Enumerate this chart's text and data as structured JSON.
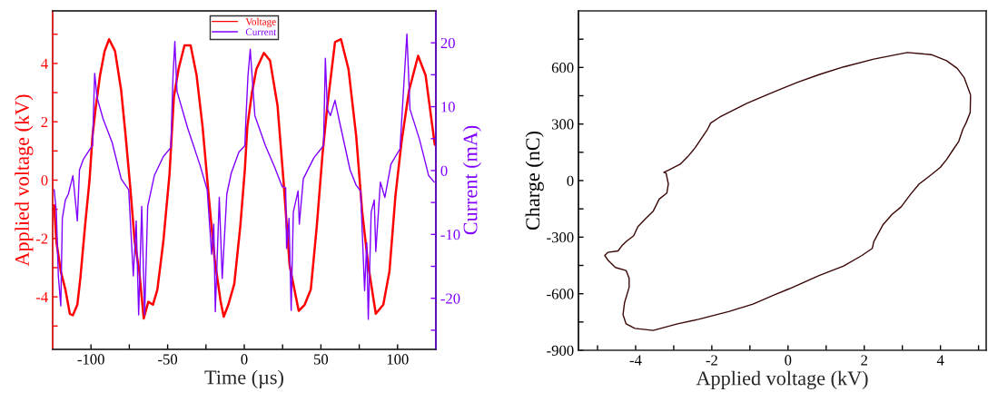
{
  "chart_data": [
    {
      "type": "line",
      "xlabel": "Time (µs)",
      "ylabel": "Applied voltage (kV)",
      "y2label": "Current (mA)",
      "legend": "top",
      "xlim": [
        -125,
        125
      ],
      "xticks": [
        -100,
        {
          "value": -75,
          "label": null
        },
        -50,
        {
          "value": -25,
          "label": null
        },
        0,
        {
          "value": 25,
          "label": null
        },
        50,
        {
          "value": 75,
          "label": null
        },
        100
      ],
      "ylim": [
        -5.8,
        5.8
      ],
      "yticks": [
        {
          "value": -5,
          "label": null
        },
        -4,
        {
          "value": -3,
          "label": null
        },
        -2,
        {
          "value": -1,
          "label": null
        },
        0,
        {
          "value": 1,
          "label": null
        },
        2,
        {
          "value": 3,
          "label": null
        },
        4,
        {
          "value": 5,
          "label": null
        }
      ],
      "y2lim": [
        -28,
        25
      ],
      "y2ticks": [
        {
          "value": -25,
          "label": null
        },
        -20,
        {
          "value": -15,
          "label": null
        },
        -10,
        {
          "value": -5,
          "label": null
        },
        0,
        {
          "value": 5,
          "label": null
        },
        10,
        {
          "value": 15,
          "label": null
        },
        20
      ],
      "series": [
        {
          "name": "Voltage",
          "color": "#ff0000",
          "x": [
            -124,
            -122.6,
            -119.7,
            -116.7,
            -113.8,
            -111.8,
            -108.9,
            -106.9,
            -103.9,
            -101,
            -99,
            -97,
            -94.1,
            -91.1,
            -88.2,
            -84.3,
            -80.3,
            -77.4,
            -74.4,
            -71.5,
            -68.5,
            -65.6,
            -62.6,
            -59.6,
            -56.7,
            -52.8,
            -48.8,
            -45.9,
            -42.9,
            -39,
            -35,
            -31.1,
            -27.2,
            -23.2,
            -19.3,
            -15.4,
            -13.4,
            -10.4,
            -6.5,
            -2.6,
            0.4,
            2,
            4.9,
            7.9,
            12.8,
            16.8,
            21.7,
            25.6,
            29.6,
            35.5,
            39.4,
            43.4,
            47.3,
            50.9,
            54.2,
            59.2,
            63.1,
            68,
            73,
            76.9,
            80.9,
            85.8,
            90.7,
            94.7,
            98.6,
            102.6,
            107.5,
            113.4,
            118.3,
            124.3
          ],
          "values": [
            -0.86,
            -2.1,
            -3.13,
            -3.75,
            -4.58,
            -4.63,
            -4.27,
            -3.34,
            -1.58,
            -0.03,
            1.52,
            2.45,
            3.59,
            4.42,
            4.83,
            4.42,
            3.07,
            1.52,
            -0.24,
            -2.1,
            -3.13,
            -4.74,
            -4.17,
            -4.27,
            -3.75,
            -2.1,
            0.18,
            2.86,
            3.8,
            4.62,
            4.62,
            3.59,
            1.83,
            -0.55,
            -2.72,
            -4.17,
            -4.68,
            -4.27,
            -3.55,
            -1.58,
            0.38,
            1.83,
            2.96,
            3.8,
            4.36,
            4.1,
            2.55,
            -0.03,
            -2.93,
            -4.48,
            -4.27,
            -3.75,
            -1.58,
            0.8,
            2.55,
            4.73,
            4.83,
            3.8,
            1.52,
            -1.07,
            -2.93,
            -4.58,
            -4.27,
            -3.13,
            -0.55,
            1.31,
            3.07,
            4.26,
            3.59,
            1.21
          ]
        },
        {
          "name": "Current",
          "color": "#8000ff",
          "axis": "y2",
          "x": [
            -124,
            -122.6,
            -121.3,
            -119.7,
            -118.7,
            -116.7,
            -114.8,
            -111.8,
            -108.9,
            -107.5,
            -104.9,
            -100,
            -99,
            -97.6,
            -96,
            -92.1,
            -86.2,
            -80.3,
            -75.4,
            -72.4,
            -70.5,
            -68.9,
            -66.9,
            -65,
            -63,
            -58.7,
            -52.8,
            -47.9,
            -46.5,
            -45.3,
            -43.9,
            -37,
            -29.1,
            -24.2,
            -21.3,
            -19.9,
            -18.9,
            -16.3,
            -14.4,
            -11.4,
            -8.5,
            -3.5,
            0.4,
            1,
            2.4,
            3.9,
            6.9,
            13.8,
            19.7,
            24.7,
            27,
            27.6,
            29.2,
            30.6,
            32,
            35.1,
            35.9,
            38.5,
            45.4,
            51.7,
            52.9,
            54.2,
            56.2,
            59.2,
            62.1,
            69,
            73,
            75.9,
            78.5,
            79.9,
            80.9,
            82.8,
            84.8,
            85.8,
            88.8,
            91.7,
            95.7,
            101.6,
            103.6,
            106.1,
            108.1,
            114.4,
            120.3,
            123.9
          ],
          "values": [
            -3.0,
            -6.5,
            -16.5,
            -21.2,
            -7.5,
            -4.6,
            -3.7,
            -0.8,
            -7.9,
            0.1,
            1.8,
            3.6,
            3.9,
            15.2,
            11.4,
            8.1,
            4.4,
            -1.3,
            -3.0,
            -16.5,
            -7.9,
            -22.6,
            -5.6,
            -22.6,
            -5.6,
            -0.8,
            2.2,
            3.6,
            14.7,
            20.2,
            12.4,
            6.7,
            1.0,
            -3.0,
            -13.1,
            -8.4,
            -22.1,
            -4.2,
            -16.9,
            -3.7,
            -0.4,
            2.9,
            3.9,
            7.7,
            14.8,
            19.0,
            8.6,
            3.9,
            0.6,
            -2.5,
            -2.7,
            -12.2,
            -7.5,
            -21.9,
            -6.5,
            -3.2,
            -8.4,
            -1.3,
            2.0,
            3.9,
            17.6,
            9.6,
            8.6,
            11.0,
            7.7,
            0.1,
            -2.3,
            -3.2,
            -18.8,
            -11.3,
            -23.3,
            -6.5,
            -4.6,
            -12.7,
            -1.8,
            -4.2,
            1.0,
            3.4,
            11.5,
            21.4,
            9.6,
            4.8,
            -0.8,
            -1.8
          ]
        }
      ]
    },
    {
      "type": "line",
      "xlabel": "Applied voltage (kV)",
      "ylabel": "Charge (nC)",
      "xlim": [
        -5.5,
        5.2
      ],
      "xticks": [
        {
          "value": -5,
          "label": null
        },
        -4,
        {
          "value": -3,
          "label": null
        },
        -2,
        {
          "value": -1,
          "label": null
        },
        0,
        {
          "value": 1,
          "label": null
        },
        2,
        {
          "value": 3,
          "label": null
        },
        4,
        {
          "value": 5,
          "label": null
        }
      ],
      "ylim": [
        -900,
        900
      ],
      "yticks": [
        -900,
        {
          "value": -750,
          "label": null
        },
        -600,
        {
          "value": -450,
          "label": null
        },
        -300,
        {
          "value": -150,
          "label": null
        },
        0,
        {
          "value": 150,
          "label": null
        },
        300,
        {
          "value": 450,
          "label": null
        },
        600,
        {
          "value": 750,
          "label": null
        }
      ],
      "series": [
        {
          "color": "#3a0505",
          "x": [
            4.79,
            4.78,
            4.67,
            4.59,
            4.48,
            4.32,
            4.16,
            4.0,
            3.76,
            3.44,
            3.21,
            2.97,
            2.73,
            2.49,
            2.25,
            2.21,
            1.94,
            1.46,
            0.83,
            0.03,
            -0.37,
            -0.92,
            -1.56,
            -2.35,
            -2.9,
            -3.54,
            -4.02,
            -4.25,
            -4.33,
            -4.29,
            -4.17,
            -4.17,
            -4.25,
            -4.53,
            -4.73,
            -4.81,
            -4.73,
            -4.46,
            -4.37,
            -4.25,
            -4.05,
            -3.94,
            -3.78,
            -3.54,
            -3.38,
            -3.18,
            -3.14,
            -3.2,
            -3.26,
            -3.14,
            -2.83,
            -2.63,
            -2.43,
            -2.27,
            -2.11,
            -2.03,
            -1.79,
            -1.4,
            -1.08,
            -0.52,
            -0.13,
            0.27,
            0.83,
            1.46,
            2.25,
            3.13,
            3.76,
            4.16,
            4.44,
            4.62,
            4.71,
            4.79
          ],
          "values": [
            450,
            361,
            305,
            273,
            208,
            160,
            111,
            71,
            31,
            -18,
            -74,
            -139,
            -179,
            -235,
            -324,
            -360,
            -397,
            -453,
            -502,
            -574,
            -607,
            -655,
            -695,
            -736,
            -760,
            -795,
            -784,
            -760,
            -711,
            -647,
            -566,
            -518,
            -477,
            -461,
            -421,
            -397,
            -381,
            -373,
            -348,
            -324,
            -292,
            -244,
            -211,
            -163,
            -98,
            -66,
            -18,
            39,
            44,
            55,
            87,
            127,
            176,
            224,
            273,
            305,
            337,
            377,
            410,
            458,
            490,
            523,
            563,
            603,
            644,
            679,
            668,
            636,
            595,
            547,
            498,
            455
          ]
        }
      ]
    }
  ]
}
